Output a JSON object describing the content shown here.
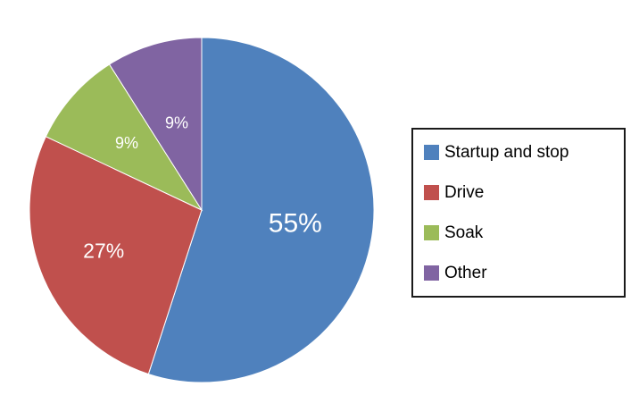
{
  "chart_data": {
    "type": "pie",
    "title": "",
    "categories": [
      "Startup and stop",
      "Drive",
      "Soak",
      "Other"
    ],
    "values": [
      55,
      27,
      9,
      9
    ],
    "labels": [
      "55%",
      "27%",
      "9%",
      "9%"
    ],
    "colors": [
      "#4F81BD",
      "#C0504D",
      "#9BBB59",
      "#8064A2"
    ],
    "label_color": "#ffffff",
    "start_angle_deg": 0,
    "direction": "clockwise",
    "legend_position": "right",
    "background": "#ffffff",
    "label_radius_fractions": [
      0.55,
      0.62,
      0.58,
      0.52
    ],
    "label_font_sizes": [
      30,
      23,
      18,
      18
    ]
  }
}
